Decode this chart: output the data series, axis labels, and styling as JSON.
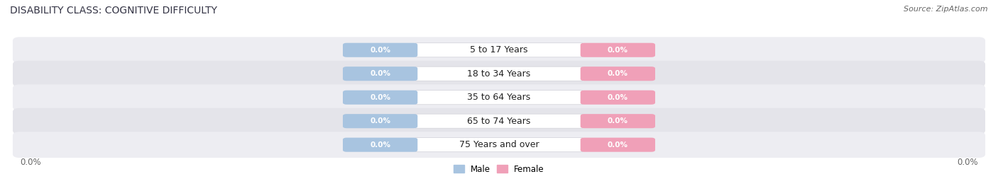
{
  "title": "DISABILITY CLASS: COGNITIVE DIFFICULTY",
  "source": "Source: ZipAtlas.com",
  "categories": [
    "5 to 17 Years",
    "18 to 34 Years",
    "35 to 64 Years",
    "65 to 74 Years",
    "75 Years and over"
  ],
  "male_values": [
    0.0,
    0.0,
    0.0,
    0.0,
    0.0
  ],
  "female_values": [
    0.0,
    0.0,
    0.0,
    0.0,
    0.0
  ],
  "male_color": "#a8c4e0",
  "female_color": "#f0a0b8",
  "title_fontsize": 10,
  "source_fontsize": 8,
  "axis_label_fontsize": 8.5,
  "bar_label_fontsize": 7.5,
  "category_fontsize": 9,
  "background_color": "#ffffff",
  "row_bg_even": "#ededf2",
  "row_bg_odd": "#e4e4ea",
  "left_label": "0.0%",
  "right_label": "0.0%",
  "legend_male": "Male",
  "legend_female": "Female"
}
